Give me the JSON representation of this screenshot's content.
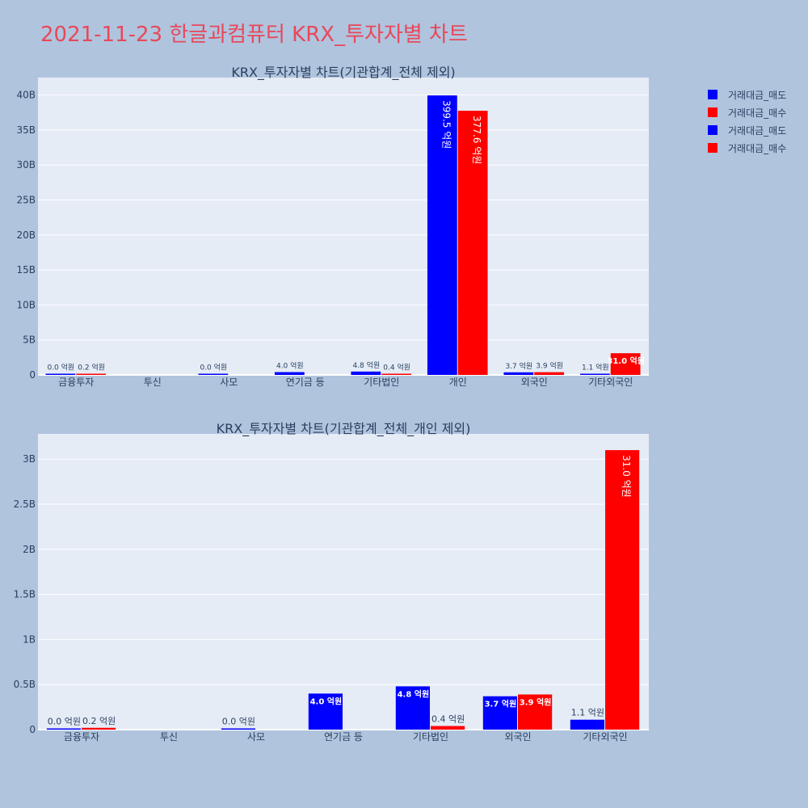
{
  "page": {
    "title": "2021-11-23 한글과컴퓨터 KRX_투자자별 차트"
  },
  "legend": [
    {
      "name": "거래대금_매도",
      "color": "#0000ff"
    },
    {
      "name": "거래대금_매수",
      "color": "#ff0000"
    },
    {
      "name": "거래대금_매도",
      "color": "#0000ff"
    },
    {
      "name": "거래대금_매수",
      "color": "#ff0000"
    }
  ],
  "chart_data": [
    {
      "type": "bar",
      "title": "KRX_투자자별 차트(기관합계_전체 제외)",
      "categories": [
        "금융투자",
        "투신",
        "사모",
        "연기금 등",
        "기타법인",
        "개인",
        "외국인",
        "기타외국인"
      ],
      "ylim": [
        0,
        42500000000
      ],
      "yticks": [
        0,
        5000000000,
        10000000000,
        15000000000,
        20000000000,
        25000000000,
        30000000000,
        35000000000,
        40000000000
      ],
      "ytick_labels": [
        "0",
        "5B",
        "10B",
        "15B",
        "20B",
        "25B",
        "30B",
        "35B",
        "40B"
      ],
      "grid": true,
      "series": [
        {
          "name": "거래대금_매도",
          "color": "#0000ff",
          "values": [
            3000000,
            null,
            1000000,
            400000000,
            480000000,
            39950000000,
            370000000,
            110000000
          ],
          "labels": [
            "0.0 억원",
            "",
            "0.0 억원",
            "4.0 억원",
            "4.8 억원",
            "399.5 억원",
            "3.7 억원",
            "1.1 억원"
          ]
        },
        {
          "name": "거래대금_매수",
          "color": "#ff0000",
          "values": [
            20000000,
            null,
            null,
            null,
            40000000,
            37760000000,
            390000000,
            3100000000
          ],
          "labels": [
            "0.2 억원",
            "",
            "",
            "",
            "0.4 억원",
            "377.6 억원",
            "3.9 억원",
            "31.0 억원"
          ]
        }
      ]
    },
    {
      "type": "bar",
      "title": "KRX_투자자별 차트(기관합계_전체_개인 제외)",
      "categories": [
        "금융투자",
        "투신",
        "사모",
        "연기금 등",
        "기타법인",
        "외국인",
        "기타외국인"
      ],
      "ylim": [
        0,
        3280000000
      ],
      "yticks": [
        0,
        500000000,
        1000000000,
        1500000000,
        2000000000,
        2500000000,
        3000000000
      ],
      "ytick_labels": [
        "0",
        "0.5B",
        "1B",
        "1.5B",
        "2B",
        "2.5B",
        "3B"
      ],
      "grid": true,
      "series": [
        {
          "name": "거래대금_매도",
          "color": "#0000ff",
          "values": [
            3000000,
            null,
            1000000,
            400000000,
            480000000,
            370000000,
            110000000
          ],
          "labels": [
            "0.0 억원",
            "",
            "0.0 억원",
            "4.0 억원",
            "4.8 억원",
            "3.7 억원",
            "1.1 억원"
          ]
        },
        {
          "name": "거래대금_매수",
          "color": "#ff0000",
          "values": [
            20000000,
            null,
            null,
            null,
            40000000,
            390000000,
            3100000000
          ],
          "labels": [
            "0.2 억원",
            "",
            "",
            "",
            "0.4 억원",
            "3.9 억원",
            "31.0 억원"
          ]
        }
      ]
    }
  ]
}
